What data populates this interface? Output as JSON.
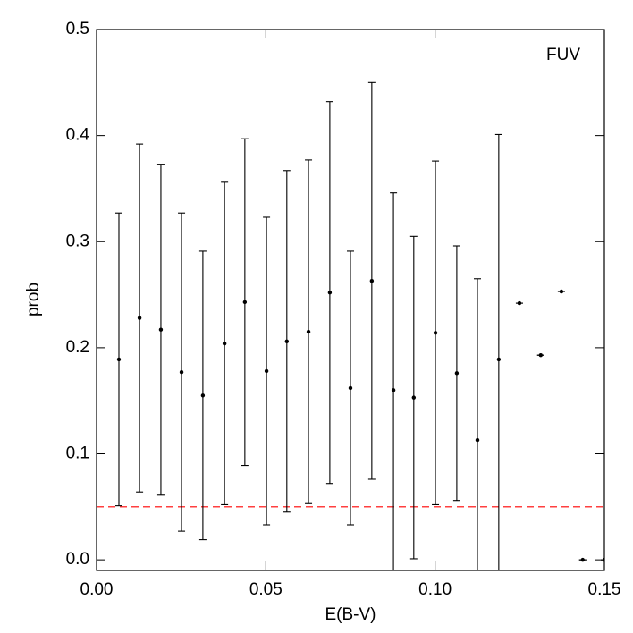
{
  "chart_data": {
    "type": "scatter",
    "x_label": "E(B-V)",
    "y_label": "prob",
    "annotation": "FUV",
    "xlim": [
      0,
      0.15
    ],
    "ylim": [
      -0.01,
      0.5
    ],
    "xticks": [
      {
        "value": 0,
        "label": "0.00"
      },
      0.05,
      {
        "value": 0.1,
        "label": "0.10"
      },
      0.15
    ],
    "yticks": [
      {
        "value": 0,
        "label": "0.0"
      },
      0.1,
      0.2,
      0.3,
      0.4,
      0.5
    ],
    "hline": {
      "value": 0.05,
      "color": "#ff0000"
    },
    "color": "#000000",
    "x": [
      0.0066,
      0.0127,
      0.019,
      0.0251,
      0.0314,
      0.0378,
      0.0438,
      0.0502,
      0.0562,
      0.0626,
      0.0689,
      0.075,
      0.0813,
      0.0877,
      0.0937,
      0.1001,
      0.1064,
      0.1125,
      0.1188,
      0.1249,
      0.1312,
      0.1373,
      0.1436,
      0.15
    ],
    "values": [
      0.189,
      0.228,
      0.217,
      0.177,
      0.155,
      0.204,
      0.243,
      0.178,
      0.206,
      0.215,
      0.252,
      0.162,
      0.263,
      0.16,
      0.153,
      0.214,
      0.176,
      0.113,
      0.189,
      0.242,
      0.193,
      0.253,
      0,
      0
    ],
    "errors": [
      0.138,
      0.164,
      0.156,
      0.15,
      0.136,
      0.152,
      0.154,
      0.145,
      0.161,
      0.162,
      0.18,
      0.129,
      0.187,
      0.186,
      0.152,
      0.162,
      0.12,
      0.152,
      0.212,
      0,
      0,
      0,
      0,
      0
    ]
  }
}
